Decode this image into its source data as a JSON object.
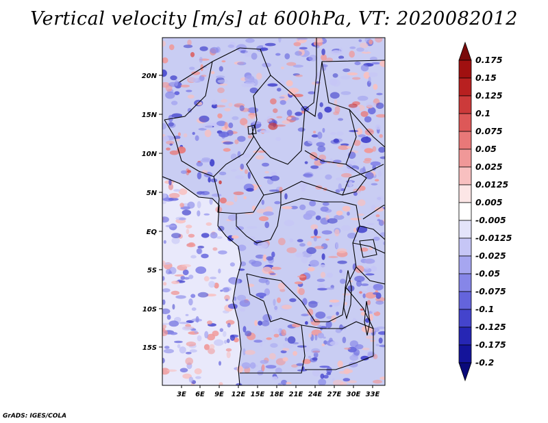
{
  "title": "Vertical velocity [m/s] at 600hPa, VT: 2020082012",
  "credit": "GrADS: IGES/COLA",
  "axes": {
    "y_ticks": [
      "20N",
      "15N",
      "10N",
      "5N",
      "EQ",
      "5S",
      "10S",
      "15S"
    ],
    "x_ticks": [
      "3E",
      "6E",
      "9E",
      "12E",
      "15E",
      "18E",
      "21E",
      "24E",
      "27E",
      "30E",
      "33E"
    ]
  },
  "colorbar": {
    "labels": [
      "0.175",
      "0.15",
      "0.125",
      "0.1",
      "0.075",
      "0.05",
      "0.025",
      "0.0125",
      "0.005",
      "-0.005",
      "-0.0125",
      "-0.025",
      "-0.05",
      "-0.075",
      "-0.1",
      "-0.125",
      "-0.175",
      "-0.2"
    ],
    "colors": [
      "#7a0a0a",
      "#a01010",
      "#b82020",
      "#cc3a3a",
      "#dd5858",
      "#e87878",
      "#f09898",
      "#f8c0c0",
      "#fce6e6",
      "#ffffff",
      "#e4e4fa",
      "#c6c6f6",
      "#a6a6f0",
      "#8686e8",
      "#6464dc",
      "#4444cc",
      "#2626b4",
      "#14149a",
      "#0a0a7a"
    ]
  },
  "colors": {
    "ocean": "#e9e9fb",
    "land_base": "#c9cdf3",
    "border": "#000000"
  }
}
